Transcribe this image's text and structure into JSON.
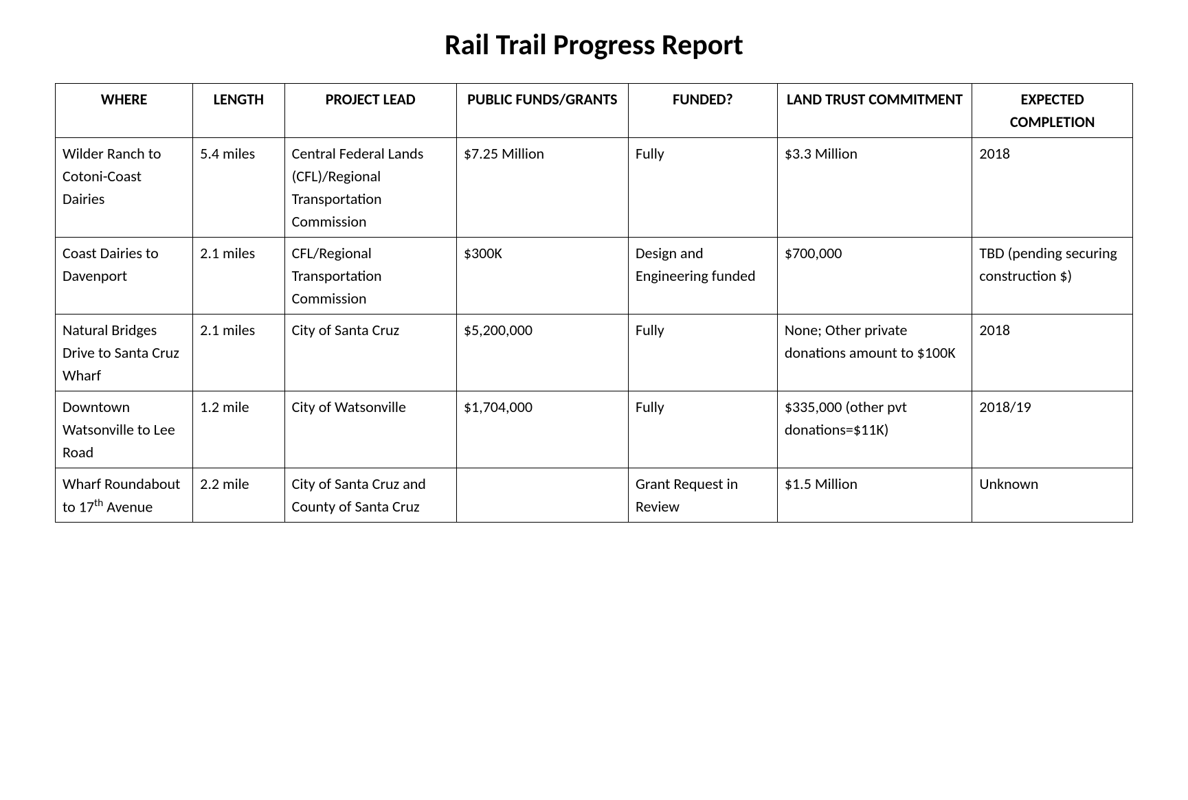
{
  "title": "Rail Trail Progress Report",
  "table": {
    "headers": {
      "where": "WHERE",
      "length": "LENGTH",
      "lead": "PROJECT LEAD",
      "funds": "PUBLIC FUNDS/GRANTS",
      "funded": "FUNDED?",
      "trust": "LAND TRUST COMMITMENT",
      "completion": "EXPECTED COMPLETION"
    },
    "rows": [
      {
        "where": "Wilder Ranch to Cotoni-Coast Dairies",
        "length": "5.4 miles",
        "lead": "Central Federal Lands (CFL)/Regional Transportation Commission",
        "funds": "$7.25 Million",
        "funded": "Fully",
        "trust": "$3.3 Million",
        "completion": "2018"
      },
      {
        "where": "Coast Dairies to Davenport",
        "length": "2.1 miles",
        "lead": "CFL/Regional Transportation Commission",
        "funds": "$300K",
        "funded": "Design and Engineering funded",
        "trust": "$700,000",
        "completion": "TBD (pending securing construction $)"
      },
      {
        "where": "Natural Bridges Drive to Santa Cruz Wharf",
        "length": "2.1 miles",
        "lead": "City of Santa Cruz",
        "funds": "$5,200,000",
        "funded": "Fully",
        "trust": "None; Other private donations amount to $100K",
        "completion": "2018"
      },
      {
        "where": "Downtown Watsonville to Lee Road",
        "length": "1.2 mile",
        "lead": "City of Watsonville",
        "funds": "$1,704,000",
        "funded": "Fully",
        "trust": "$335,000 (other pvt donations=$11K)",
        "completion": "2018/19"
      },
      {
        "where_html": "Wharf Roundabout to 17<sup>th</sup> Avenue",
        "length": "2.2 mile",
        "lead": "City of Santa Cruz and County of Santa Cruz",
        "funds": "",
        "funded": "Grant Request in Review",
        "trust": "$1.5 Million",
        "completion": "Unknown"
      }
    ]
  },
  "styling": {
    "background_color": "#ffffff",
    "text_color": "#000000",
    "border_color": "#000000",
    "title_fontsize": 42,
    "cell_fontsize": 22,
    "font_family": "Calibri"
  }
}
